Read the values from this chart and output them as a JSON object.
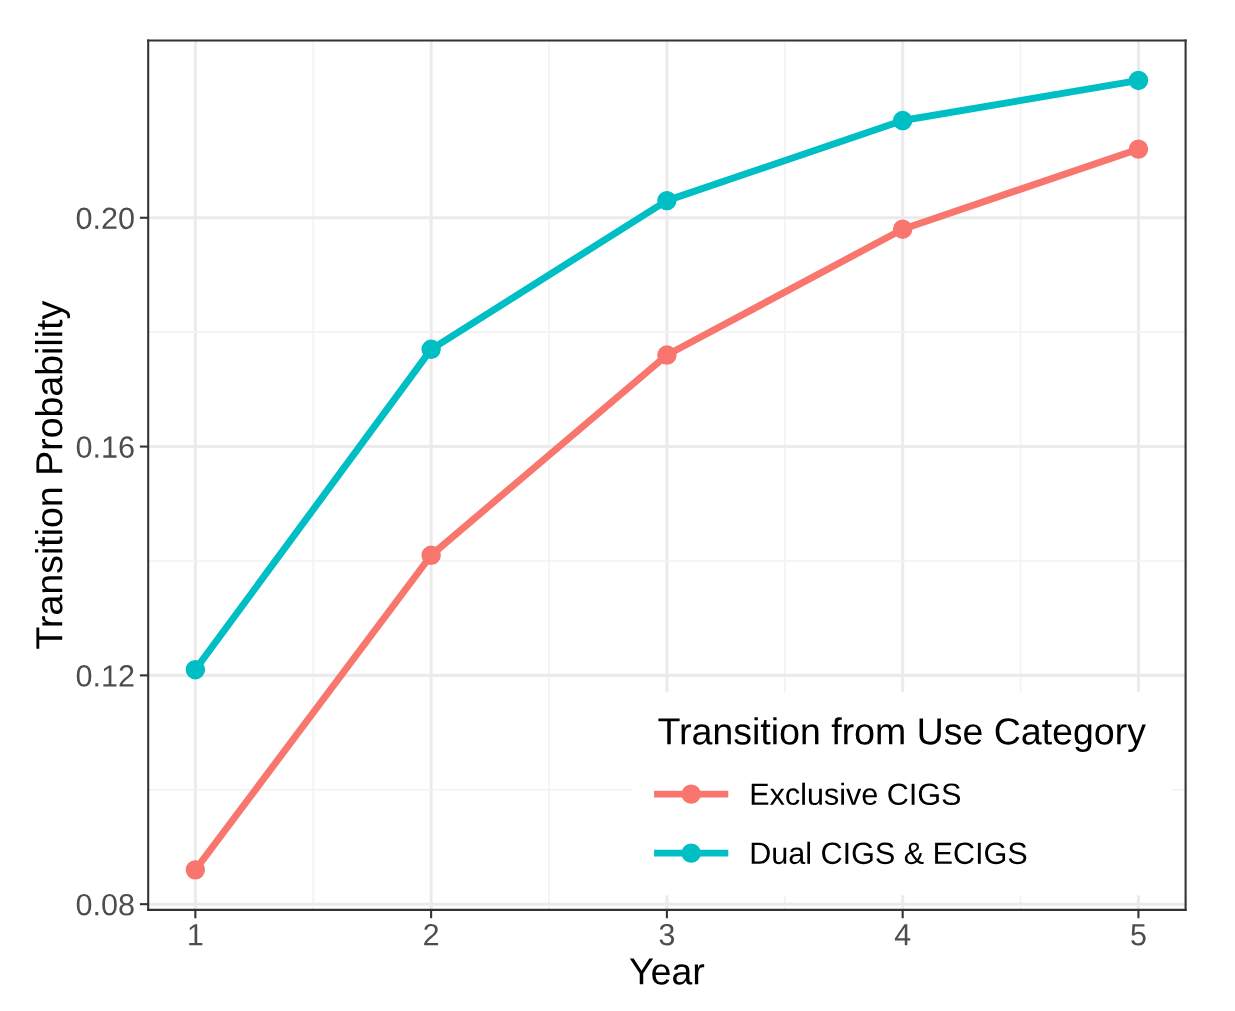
{
  "chart_data": {
    "type": "line",
    "xlabel": "Year",
    "ylabel": "Transition Probability",
    "legend_title": "Transition from Use Category",
    "x": [
      1,
      2,
      3,
      4,
      5
    ],
    "series": [
      {
        "name": "Exclusive CIGS",
        "color": "#f8766d",
        "values": [
          0.086,
          0.141,
          0.176,
          0.198,
          0.212
        ]
      },
      {
        "name": "Dual CIGS & ECIGS",
        "color": "#00bfc4",
        "values": [
          0.121,
          0.177,
          0.203,
          0.217,
          0.224
        ]
      }
    ],
    "xlim": [
      0.8,
      5.2
    ],
    "xticks": [
      1,
      2,
      3,
      4,
      5
    ],
    "ylim": [
      0.079,
      0.231
    ],
    "yticks": [
      {
        "value": 0.08,
        "label": "0.08"
      },
      {
        "value": 0.12,
        "label": "0.12"
      },
      {
        "value": 0.16,
        "label": "0.16"
      },
      {
        "value": 0.2,
        "label": "0.20"
      }
    ],
    "grid": true,
    "legend": "bottom right",
    "marker": "circle",
    "line_style": "solid"
  }
}
